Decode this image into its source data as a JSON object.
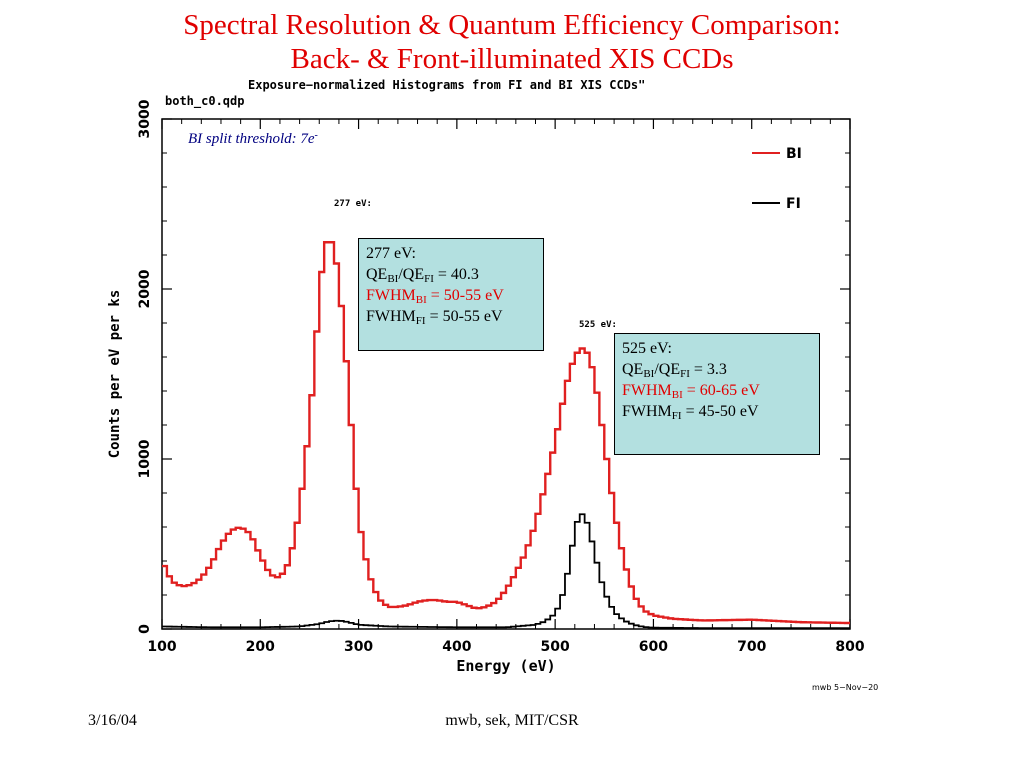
{
  "slide": {
    "title_line1": "Spectral Resolution & Quantum Efficiency Comparison:",
    "title_line2": "Back- & Front-illuminated XIS CCDs",
    "footer_date": "3/16/04",
    "footer_credit": "mwb, sek, MIT/CSR"
  },
  "plot_meta": {
    "file_label": "both_c0.qdp",
    "plot_title": "Exposure−normalized Histograms from FI and BI XIS CCDs\"",
    "stamp": "mwb 5−Nov−20",
    "threshold_text": "BI split threshold: 7e",
    "threshold_sup": "-",
    "peak1_label": "277 eV:",
    "peak2_label": "525 eV:"
  },
  "box1": {
    "title": "277 eV:",
    "qe_prefix": "QE",
    "qe_sub1": "BI",
    "qe_mid": "/QE",
    "qe_sub2": "FI",
    "qe_value": " = 40.3",
    "fwhm_bi_prefix": "FWHM",
    "fwhm_bi_sub": "BI",
    "fwhm_bi_value": " = 50-55 eV",
    "fwhm_fi_prefix": "FWHM",
    "fwhm_fi_sub": "FI",
    "fwhm_fi_value": " = 50-55 eV"
  },
  "box2": {
    "title": "525 eV:",
    "qe_prefix": "QE",
    "qe_sub1": "BI",
    "qe_mid": "/QE",
    "qe_sub2": "FI",
    "qe_value": " = 3.3",
    "fwhm_bi_prefix": "FWHM",
    "fwhm_bi_sub": "BI",
    "fwhm_bi_value": " = 60-65 eV",
    "fwhm_fi_prefix": "FWHM",
    "fwhm_fi_sub": "FI",
    "fwhm_fi_value": " = 45-50 eV"
  },
  "colors": {
    "bi": "#e02020",
    "fi": "#000000",
    "box_bg": "#b3e0e0",
    "title": "#e00000"
  },
  "chart_data": {
    "type": "line",
    "title": "Exposure−normalized Histograms from FI and BI XIS CCDs\"",
    "xlabel": "Energy (eV)",
    "ylabel": "Counts per eV per ks",
    "xlim": [
      100,
      800
    ],
    "ylim": [
      0,
      3000
    ],
    "xticks": [
      100,
      200,
      300,
      400,
      500,
      600,
      700,
      800
    ],
    "yticks": [
      0,
      1000,
      2000,
      3000
    ],
    "legend_position": "top-right",
    "grid": false,
    "series": [
      {
        "name": "BI",
        "color": "#e02020",
        "x": [
          100,
          110,
          120,
          130,
          140,
          150,
          160,
          170,
          180,
          190,
          200,
          210,
          220,
          230,
          240,
          250,
          255,
          260,
          265,
          270,
          275,
          280,
          285,
          290,
          295,
          300,
          310,
          320,
          330,
          340,
          350,
          360,
          370,
          380,
          390,
          400,
          410,
          420,
          430,
          440,
          450,
          460,
          470,
          480,
          490,
          500,
          505,
          510,
          515,
          520,
          525,
          530,
          535,
          540,
          545,
          550,
          555,
          560,
          570,
          580,
          590,
          600,
          620,
          650,
          700,
          750,
          800
        ],
        "y": [
          400,
          280,
          250,
          260,
          300,
          380,
          500,
          580,
          600,
          560,
          430,
          320,
          300,
          400,
          700,
          1200,
          1550,
          1950,
          2250,
          2300,
          2250,
          2050,
          1750,
          1400,
          1000,
          650,
          330,
          180,
          130,
          130,
          140,
          160,
          170,
          170,
          160,
          160,
          140,
          120,
          130,
          160,
          230,
          330,
          450,
          620,
          850,
          1100,
          1250,
          1400,
          1520,
          1600,
          1650,
          1650,
          1600,
          1480,
          1300,
          1100,
          900,
          700,
          400,
          200,
          110,
          80,
          60,
          50,
          55,
          40,
          35
        ]
      },
      {
        "name": "FI",
        "color": "#000000",
        "x": [
          100,
          150,
          200,
          240,
          260,
          270,
          280,
          290,
          300,
          330,
          400,
          450,
          480,
          490,
          500,
          505,
          510,
          515,
          520,
          525,
          530,
          535,
          540,
          545,
          550,
          560,
          570,
          580,
          590,
          600,
          650,
          700,
          800
        ],
        "y": [
          15,
          10,
          10,
          15,
          30,
          45,
          50,
          40,
          25,
          15,
          10,
          10,
          25,
          45,
          90,
          150,
          250,
          400,
          580,
          680,
          670,
          580,
          450,
          330,
          220,
          100,
          50,
          25,
          12,
          8,
          5,
          5,
          5
        ]
      }
    ],
    "annotations": [
      "277 eV:",
      "525 eV:"
    ]
  }
}
